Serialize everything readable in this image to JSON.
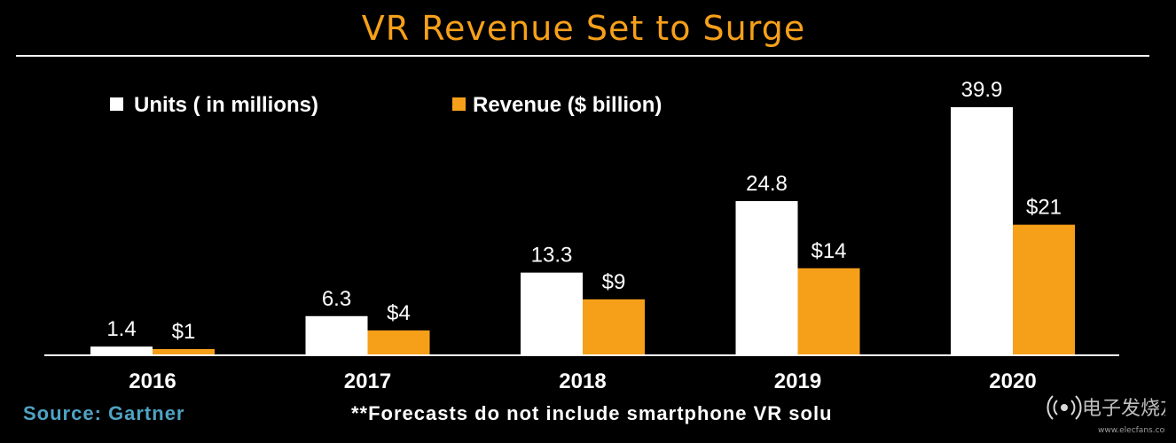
{
  "title": "VR Revenue Set to Surge",
  "source": "Source: Gartner",
  "footnote": "**Forecasts do not include smartphone VR solu",
  "watermark": {
    "text": "电子发烧友",
    "subtext": "www.elecfans.com"
  },
  "colors": {
    "background": "#000000",
    "title": "#F6A01A",
    "units": "#FFFFFF",
    "revenue": "#F6A01A",
    "source": "#4FA3C4"
  },
  "chart_data": {
    "type": "bar",
    "title": "VR Revenue Set to Surge",
    "xlabel": "",
    "ylabel": "",
    "categories": [
      "2016",
      "2017",
      "2018",
      "2019",
      "2020"
    ],
    "ylim": [
      0,
      39.9
    ],
    "legend_position": "top-left",
    "grid": false,
    "series": [
      {
        "name": "Units ( in millions)",
        "values": [
          1.4,
          6.3,
          13.3,
          24.8,
          39.9
        ],
        "labels": [
          "1.4",
          "6.3",
          "13.3",
          "24.8",
          "39.9"
        ],
        "color": "#FFFFFF"
      },
      {
        "name": "Revenue ($ billion)",
        "values": [
          1,
          4,
          9,
          14,
          21
        ],
        "labels": [
          "$1",
          "$4",
          "$9",
          "$14",
          "$21"
        ],
        "color": "#F6A01A"
      }
    ]
  }
}
